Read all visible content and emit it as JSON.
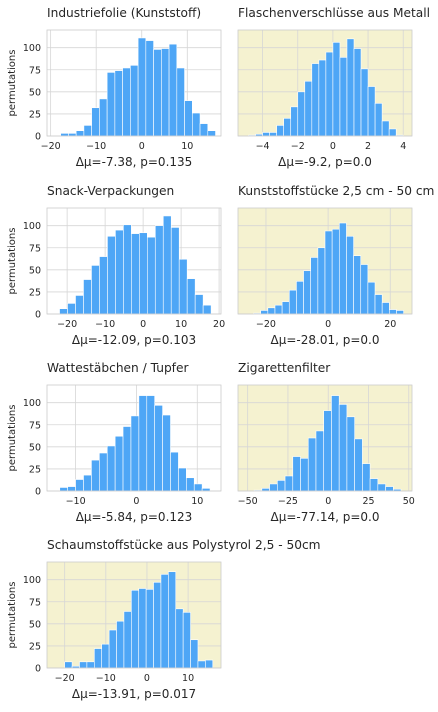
{
  "colors": {
    "bar": "#4ea6f6",
    "highlight_bg": "#f5f2d0",
    "plain_bg": "#ffffff",
    "grid": "#d6d6d6",
    "frame": "#cccccc",
    "text": "#262626"
  },
  "chart_data": [
    {
      "type": "bar",
      "title": "Industriefolie (Kunststoff)",
      "xlabel": "Δμ=-7.38, p=0.135",
      "ylabel": "permutations",
      "highlighted": false,
      "xlim": [
        -20.8,
        17.4
      ],
      "ylim": [
        0,
        120
      ],
      "xticks": [
        -20,
        -10,
        0,
        10
      ],
      "yticks": [
        0,
        25,
        50,
        75,
        100
      ],
      "bins": [
        [
          -17.8,
          -16.1
        ],
        [
          -16.1,
          -14.4
        ],
        [
          -14.4,
          -12.7
        ],
        [
          -12.7,
          -11.0
        ],
        [
          -11.0,
          -9.3
        ],
        [
          -9.3,
          -7.6
        ],
        [
          -7.6,
          -5.9
        ],
        [
          -5.9,
          -4.2
        ],
        [
          -4.2,
          -2.5
        ],
        [
          -2.5,
          -0.8
        ],
        [
          -0.8,
          0.9
        ],
        [
          0.9,
          2.6
        ],
        [
          2.6,
          4.3
        ],
        [
          4.3,
          6.0
        ],
        [
          6.0,
          7.7
        ],
        [
          7.7,
          9.4
        ],
        [
          9.4,
          11.1
        ],
        [
          11.1,
          12.8
        ],
        [
          12.8,
          14.5
        ],
        [
          14.5,
          16.2
        ]
      ],
      "values": [
        3,
        3,
        6,
        12,
        32,
        42,
        72,
        74,
        77,
        80,
        111,
        108,
        98,
        99,
        104,
        77,
        40,
        26,
        14,
        6
      ]
    },
    {
      "type": "bar",
      "title": "Flaschenverschlüsse aus Metall",
      "xlabel": "Δμ=-9.2, p=0.0",
      "ylabel": "",
      "highlighted": true,
      "xlim": [
        -5.4,
        4.5
      ],
      "ylim": [
        0,
        120
      ],
      "xticks": [
        -4,
        -2,
        0,
        2,
        4
      ],
      "yticks": [
        0,
        25,
        50,
        75,
        100
      ],
      "bins": [
        [
          -4.8,
          -4.4
        ],
        [
          -4.4,
          -4.0
        ],
        [
          -4.0,
          -3.6
        ],
        [
          -3.6,
          -3.2
        ],
        [
          -3.2,
          -2.8
        ],
        [
          -2.8,
          -2.4
        ],
        [
          -2.4,
          -2.0
        ],
        [
          -2.0,
          -1.6
        ],
        [
          -1.6,
          -1.2
        ],
        [
          -1.2,
          -0.8
        ],
        [
          -0.8,
          -0.4
        ],
        [
          -0.4,
          0.0
        ],
        [
          0.0,
          0.4
        ],
        [
          0.4,
          0.8
        ],
        [
          0.8,
          1.2
        ],
        [
          1.2,
          1.6
        ],
        [
          1.6,
          2.0
        ],
        [
          2.0,
          2.4
        ],
        [
          2.4,
          2.8
        ],
        [
          2.8,
          3.2
        ],
        [
          3.2,
          3.6
        ],
        [
          3.6,
          4.0
        ]
      ],
      "values": [
        1,
        2,
        4,
        4,
        12,
        20,
        33,
        50,
        62,
        82,
        86,
        95,
        106,
        89,
        110,
        99,
        76,
        56,
        37,
        17,
        8,
        1
      ]
    },
    {
      "type": "bar",
      "title": "Snack-Verpackungen",
      "xlabel": "Δμ=-12.09, p=0.103",
      "ylabel": "permutations",
      "highlighted": false,
      "xlim": [
        -25.3,
        20.5
      ],
      "ylim": [
        0,
        120
      ],
      "xticks": [
        -20,
        -10,
        0,
        10,
        20
      ],
      "yticks": [
        0,
        25,
        50,
        75,
        100
      ],
      "bins": [
        [
          -22.0,
          -19.9
        ],
        [
          -19.9,
          -17.8
        ],
        [
          -17.8,
          -15.7
        ],
        [
          -15.7,
          -13.6
        ],
        [
          -13.6,
          -11.5
        ],
        [
          -11.5,
          -9.4
        ],
        [
          -9.4,
          -7.3
        ],
        [
          -7.3,
          -5.2
        ],
        [
          -5.2,
          -3.1
        ],
        [
          -3.1,
          -1.0
        ],
        [
          -1.0,
          1.1
        ],
        [
          1.1,
          3.2
        ],
        [
          3.2,
          5.3
        ],
        [
          5.3,
          7.4
        ],
        [
          7.4,
          9.5
        ],
        [
          9.5,
          11.6
        ],
        [
          11.6,
          13.7
        ],
        [
          13.7,
          15.8
        ],
        [
          15.8,
          17.9
        ]
      ],
      "values": [
        6,
        12,
        21,
        39,
        55,
        65,
        88,
        95,
        101,
        91,
        92,
        87,
        100,
        111,
        98,
        62,
        40,
        22,
        10
      ]
    },
    {
      "type": "bar",
      "title": "Kunststoffstücke 2,5 cm - 50 cm",
      "xlabel": "Δμ=-28.01, p=0.0",
      "ylabel": "",
      "highlighted": true,
      "xlim": [
        -29.0,
        27.0
      ],
      "ylim": [
        0,
        120
      ],
      "xticks": [
        -20,
        0,
        20
      ],
      "yticks": [
        0,
        25,
        50,
        75,
        100
      ],
      "bins": [
        [
          -24.0,
          -21.7
        ],
        [
          -21.7,
          -19.4
        ],
        [
          -19.4,
          -17.1
        ],
        [
          -17.1,
          -14.8
        ],
        [
          -14.8,
          -12.5
        ],
        [
          -12.5,
          -10.2
        ],
        [
          -10.2,
          -7.9
        ],
        [
          -7.9,
          -5.6
        ],
        [
          -5.6,
          -3.3
        ],
        [
          -3.3,
          -1.0
        ],
        [
          -1.0,
          1.3
        ],
        [
          1.3,
          3.6
        ],
        [
          3.6,
          5.9
        ],
        [
          5.9,
          8.2
        ],
        [
          8.2,
          10.5
        ],
        [
          10.5,
          12.8
        ],
        [
          12.8,
          15.1
        ],
        [
          15.1,
          17.4
        ],
        [
          17.4,
          19.7
        ],
        [
          19.7,
          22.0
        ],
        [
          22.0,
          24.3
        ]
      ],
      "values": [
        1,
        4,
        7,
        10,
        14,
        27,
        37,
        49,
        64,
        75,
        94,
        96,
        103,
        88,
        66,
        56,
        36,
        22,
        13,
        5,
        4
      ]
    },
    {
      "type": "bar",
      "title": "Wattestäbchen / Tupfer",
      "xlabel": "Δμ=-5.84, p=0.123",
      "ylabel": "permutations",
      "highlighted": false,
      "xlim": [
        -14.7,
        13.9
      ],
      "ylim": [
        0,
        120
      ],
      "xticks": [
        -10,
        0,
        10
      ],
      "yticks": [
        0,
        25,
        50,
        75,
        100
      ],
      "bins": [
        [
          -12.6,
          -11.3
        ],
        [
          -11.3,
          -10.0
        ],
        [
          -10.0,
          -8.7
        ],
        [
          -8.7,
          -7.4
        ],
        [
          -7.4,
          -6.1
        ],
        [
          -6.1,
          -4.8
        ],
        [
          -4.8,
          -3.5
        ],
        [
          -3.5,
          -2.2
        ],
        [
          -2.2,
          -0.9
        ],
        [
          -0.9,
          0.4
        ],
        [
          0.4,
          1.7
        ],
        [
          1.7,
          3.0
        ],
        [
          3.0,
          4.3
        ],
        [
          4.3,
          5.6
        ],
        [
          5.6,
          6.9
        ],
        [
          6.9,
          8.2
        ],
        [
          8.2,
          9.5
        ],
        [
          9.5,
          10.8
        ],
        [
          10.8,
          12.1
        ]
      ],
      "values": [
        4,
        5,
        13,
        18,
        35,
        43,
        51,
        62,
        73,
        85,
        108,
        108,
        97,
        86,
        44,
        26,
        15,
        8,
        3
      ]
    },
    {
      "type": "bar",
      "title": "Zigarettenfilter",
      "xlabel": "Δμ=-77.14, p=0.0",
      "ylabel": "",
      "highlighted": true,
      "xlim": [
        -56.0,
        52.0
      ],
      "ylim": [
        0,
        120
      ],
      "xticks": [
        -50,
        -25,
        0,
        25,
        50
      ],
      "yticks": [
        0,
        25,
        50,
        75,
        100
      ],
      "bins": [
        [
          -46.0,
          -41.2
        ],
        [
          -41.2,
          -36.4
        ],
        [
          -36.4,
          -31.6
        ],
        [
          -31.6,
          -26.8
        ],
        [
          -26.8,
          -22.0
        ],
        [
          -22.0,
          -17.2
        ],
        [
          -17.2,
          -12.4
        ],
        [
          -12.4,
          -7.6
        ],
        [
          -7.6,
          -2.8
        ],
        [
          -2.8,
          2.0
        ],
        [
          2.0,
          6.8
        ],
        [
          6.8,
          11.6
        ],
        [
          11.6,
          16.4
        ],
        [
          16.4,
          21.2
        ],
        [
          21.2,
          26.0
        ],
        [
          26.0,
          30.8
        ],
        [
          30.8,
          35.6
        ],
        [
          35.6,
          40.4
        ],
        [
          40.4,
          45.2
        ]
      ],
      "values": [
        1,
        3,
        8,
        12,
        17,
        39,
        37,
        60,
        68,
        91,
        108,
        98,
        84,
        59,
        31,
        14,
        8,
        5,
        2
      ]
    },
    {
      "type": "bar",
      "title": "Schaumstoffstücke aus Polystyrol 2,5 - 50cm",
      "xlabel": "Δμ=-13.91, p=0.017",
      "ylabel": "permutations",
      "highlighted": true,
      "xlim": [
        -24.3,
        18.0
      ],
      "ylim": [
        0,
        120
      ],
      "xticks": [
        -20,
        -10,
        0,
        10
      ],
      "yticks": [
        0,
        25,
        50,
        75,
        100
      ],
      "bins": [
        [
          -20.0,
          -18.2
        ],
        [
          -18.2,
          -16.4
        ],
        [
          -16.4,
          -14.6
        ],
        [
          -14.6,
          -12.8
        ],
        [
          -12.8,
          -11.0
        ],
        [
          -11.0,
          -9.2
        ],
        [
          -9.2,
          -7.4
        ],
        [
          -7.4,
          -5.6
        ],
        [
          -5.6,
          -3.8
        ],
        [
          -3.8,
          -2.0
        ],
        [
          -2.0,
          -0.2
        ],
        [
          -0.2,
          1.6
        ],
        [
          1.6,
          3.4
        ],
        [
          3.4,
          5.2
        ],
        [
          5.2,
          7.0
        ],
        [
          7.0,
          8.8
        ],
        [
          8.8,
          10.6
        ],
        [
          10.6,
          12.4
        ],
        [
          12.4,
          14.2
        ],
        [
          14.2,
          16.0
        ]
      ],
      "values": [
        7,
        2,
        7,
        7,
        22,
        27,
        43,
        53,
        64,
        88,
        90,
        89,
        97,
        106,
        109,
        67,
        63,
        32,
        8,
        9
      ]
    }
  ]
}
